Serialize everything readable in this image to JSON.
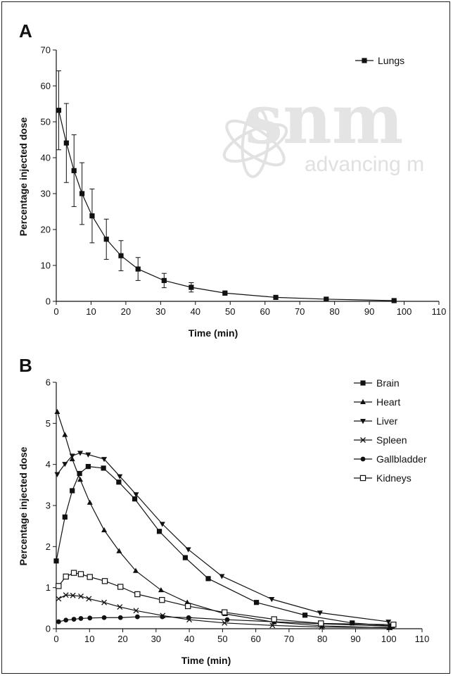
{
  "watermark": {
    "logo_text": "snm",
    "tagline": "advancing m"
  },
  "chart_data": [
    {
      "type": "line",
      "panel_label": "A",
      "xlabel": "Time (min)",
      "ylabel": "Percentage injected dose",
      "xlim": [
        0,
        110
      ],
      "ylim": [
        0,
        70
      ],
      "xticks": [
        0,
        10,
        20,
        30,
        40,
        50,
        60,
        70,
        80,
        90,
        100,
        110
      ],
      "yticks": [
        0,
        10,
        20,
        30,
        40,
        50,
        60,
        70
      ],
      "legend_position": "top-right",
      "series": [
        {
          "name": "Lungs",
          "marker": "square-filled",
          "x": [
            0.7,
            2.9,
            5.1,
            7.4,
            10.3,
            14.4,
            18.6,
            23.5,
            31.0,
            38.8,
            48.5,
            63.1,
            77.6,
            97.1
          ],
          "y": [
            53.2,
            44.1,
            36.4,
            30.0,
            23.8,
            17.3,
            12.7,
            9.0,
            5.8,
            3.9,
            2.3,
            1.1,
            0.6,
            0.2
          ],
          "err": [
            11.0,
            11.0,
            10.0,
            8.6,
            7.5,
            5.6,
            4.2,
            3.2,
            2.0,
            1.3,
            0.6,
            0.3,
            0.2,
            0.1
          ]
        }
      ]
    },
    {
      "type": "line",
      "panel_label": "B",
      "xlabel": "Time (min)",
      "ylabel": "Percentage injected dose",
      "xlim": [
        0,
        110
      ],
      "ylim": [
        0,
        6
      ],
      "xticks": [
        0,
        10,
        20,
        30,
        40,
        50,
        60,
        70,
        80,
        90,
        100,
        110
      ],
      "yticks": [
        0,
        1,
        2,
        3,
        4,
        5,
        6
      ],
      "legend_position": "top-right",
      "series": [
        {
          "name": "Brain",
          "marker": "square-filled",
          "x": [
            0,
            2.6,
            4.8,
            7.0,
            9.6,
            14.2,
            18.8,
            23.6,
            31.0,
            38.8,
            45.7,
            60.2,
            74.8,
            89.0,
            100.6
          ],
          "y": [
            1.65,
            2.72,
            3.36,
            3.78,
            3.95,
            3.91,
            3.57,
            3.16,
            2.37,
            1.73,
            1.22,
            0.64,
            0.33,
            0.14,
            0.07
          ]
        },
        {
          "name": "Heart",
          "marker": "triangle-up-filled",
          "x": [
            0.3,
            2.6,
            4.8,
            7.2,
            10.1,
            14.4,
            18.9,
            23.9,
            31.5,
            39.4,
            50.8,
            65.5,
            80.0,
            100.1
          ],
          "y": [
            5.28,
            4.72,
            4.13,
            3.63,
            3.07,
            2.4,
            1.89,
            1.41,
            0.94,
            0.64,
            0.36,
            0.16,
            0.07,
            0.02
          ]
        },
        {
          "name": "Liver",
          "marker": "triangle-down-filled",
          "x": [
            0.3,
            2.6,
            4.8,
            7.2,
            9.6,
            14.4,
            19.1,
            24.0,
            31.9,
            39.7,
            49.8,
            64.8,
            79.3,
            99.9
          ],
          "y": [
            3.76,
            4.01,
            4.21,
            4.28,
            4.24,
            4.13,
            3.71,
            3.27,
            2.55,
            1.93,
            1.28,
            0.72,
            0.39,
            0.17
          ]
        },
        {
          "name": "Spleen",
          "marker": "x",
          "x": [
            0.7,
            2.9,
            5.0,
            7.4,
            9.8,
            14.4,
            19.1,
            24.0,
            32.0,
            40.0,
            50.6,
            65.0,
            79.8,
            100.3
          ],
          "y": [
            0.73,
            0.82,
            0.81,
            0.79,
            0.73,
            0.64,
            0.53,
            0.44,
            0.32,
            0.22,
            0.14,
            0.08,
            0.04,
            0.03
          ]
        },
        {
          "name": "Gallbladder",
          "marker": "circle-filled",
          "x": [
            0.7,
            2.9,
            5.3,
            7.4,
            10.1,
            14.4,
            19.3,
            24.4,
            31.9,
            39.8,
            51.4,
            65.5,
            79.8,
            101.3
          ],
          "y": [
            0.17,
            0.21,
            0.23,
            0.25,
            0.26,
            0.27,
            0.27,
            0.29,
            0.29,
            0.27,
            0.22,
            0.17,
            0.12,
            0.06
          ]
        },
        {
          "name": "Kidneys",
          "marker": "square-open",
          "x": [
            0.7,
            2.9,
            5.3,
            7.4,
            10.1,
            14.6,
            19.3,
            24.4,
            31.8,
            39.6,
            50.6,
            65.5,
            79.6,
            101.4
          ],
          "y": [
            1.04,
            1.27,
            1.36,
            1.33,
            1.26,
            1.16,
            1.02,
            0.84,
            0.7,
            0.55,
            0.4,
            0.23,
            0.13,
            0.1
          ]
        }
      ]
    }
  ]
}
